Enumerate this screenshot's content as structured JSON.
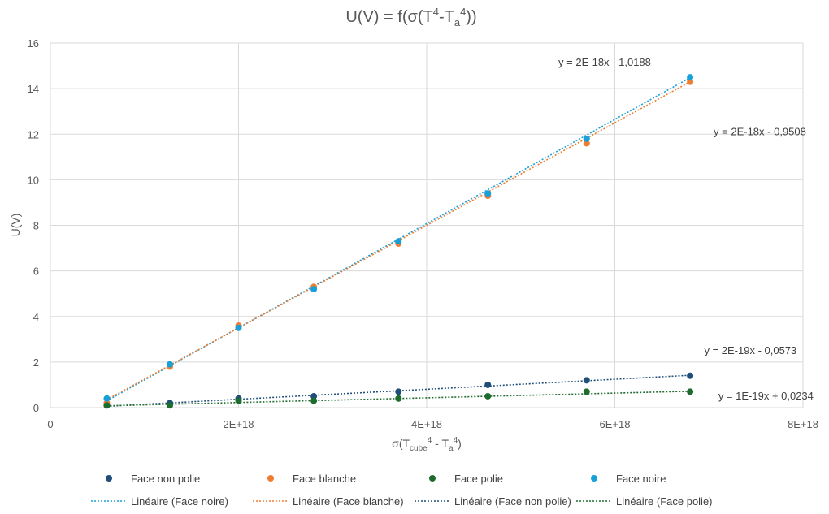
{
  "chart_data": {
    "type": "scatter",
    "title": {
      "main": "U(V) = f(σ(T",
      "sup1": "4",
      "mid": "-T",
      "sub1": "a",
      "sup2": "4",
      "end": "))"
    },
    "xlabel": {
      "main": "σ(T",
      "sub1": "cube",
      "sup1": "4",
      "mid": " - T",
      "sub2": "a",
      "sup2": "4",
      "end": ")"
    },
    "ylabel": "U(V)",
    "xlim": [
      0,
      8e+18
    ],
    "ylim": [
      0,
      16
    ],
    "x_ticks": [
      {
        "value": 0,
        "label": "0"
      },
      {
        "value": 2e+18,
        "label": "2E+18"
      },
      {
        "value": 4e+18,
        "label": "4E+18"
      },
      {
        "value": 6e+18,
        "label": "6E+18"
      },
      {
        "value": 8e+18,
        "label": "8E+18"
      }
    ],
    "y_ticks": [
      {
        "value": 0,
        "label": "0"
      },
      {
        "value": 2,
        "label": "2"
      },
      {
        "value": 4,
        "label": "4"
      },
      {
        "value": 6,
        "label": "6"
      },
      {
        "value": 8,
        "label": "8"
      },
      {
        "value": 10,
        "label": "10"
      },
      {
        "value": 12,
        "label": "12"
      },
      {
        "value": 14,
        "label": "14"
      },
      {
        "value": 16,
        "label": "16"
      }
    ],
    "grid": true,
    "legend_position": "bottom",
    "x": [
      6e+17,
      1.27e+18,
      2e+18,
      2.8e+18,
      3.7e+18,
      4.65e+18,
      5.7e+18,
      6.8e+18
    ],
    "series": [
      {
        "name": "Face non polie",
        "color": "#1F4E79",
        "y": [
          0.1,
          0.2,
          0.4,
          0.5,
          0.7,
          1.0,
          1.2,
          1.4
        ]
      },
      {
        "name": "Face blanche",
        "color": "#ED7D31",
        "y": [
          0.2,
          1.8,
          3.6,
          5.3,
          7.2,
          9.3,
          11.6,
          14.3
        ]
      },
      {
        "name": "Face polie",
        "color": "#1E6B2E",
        "y": [
          0.1,
          0.1,
          0.3,
          0.3,
          0.4,
          0.5,
          0.7,
          0.7
        ]
      },
      {
        "name": "Face noire",
        "color": "#1AA0D8",
        "y": [
          0.4,
          1.9,
          3.5,
          5.2,
          7.3,
          9.4,
          11.8,
          14.5
        ]
      }
    ],
    "trendlines": [
      {
        "name": "Linéaire (Face noire)",
        "color": "#1AA0D8",
        "x_range": [
          6e+17,
          6.8e+18
        ],
        "y_range": [
          0.3,
          14.48
        ]
      },
      {
        "name": "Linéaire (Face blanche)",
        "color": "#ED7D31",
        "x_range": [
          6e+17,
          6.8e+18
        ],
        "y_range": [
          0.35,
          14.3
        ]
      },
      {
        "name": "Linéaire (Face non polie)",
        "color": "#1F4E79",
        "x_range": [
          6e+17,
          6.8e+18
        ],
        "y_range": [
          0.06,
          1.42
        ]
      },
      {
        "name": "Linéaire (Face polie)",
        "color": "#1E6B2E",
        "x_range": [
          6e+17,
          6.8e+18
        ],
        "y_range": [
          0.08,
          0.72
        ]
      }
    ],
    "annotations": [
      {
        "text": "y = 2E-18x - 1,0188",
        "x": 5.4e+18,
        "y": 15.0
      },
      {
        "text": "y = 2E-18x - 0,9508",
        "x": 7.05e+18,
        "y": 11.95
      },
      {
        "text": "y = 2E-19x - 0,0573",
        "x": 6.95e+18,
        "y": 2.35
      },
      {
        "text": "y = 1E-19x + 0,0234",
        "x": 7.1e+18,
        "y": 0.35
      }
    ]
  }
}
